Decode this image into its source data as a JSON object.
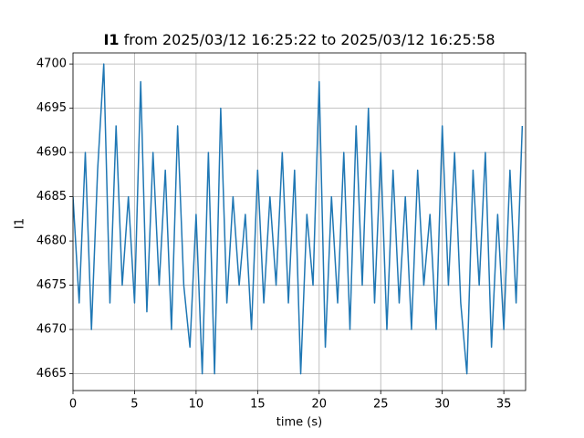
{
  "chart_data": {
    "type": "line",
    "title": {
      "name": "I1",
      "text": "from 2025/03/12 16:25:22 to 2025/03/12 16:25:58"
    },
    "xlabel": "time (s)",
    "ylabel": "I1",
    "x": [
      0,
      0.5,
      1,
      1.5,
      2,
      2.5,
      3,
      3.5,
      4,
      4.5,
      5,
      5.5,
      6,
      6.5,
      7,
      7.5,
      8,
      8.5,
      9,
      9.5,
      10,
      10.5,
      11,
      11.5,
      12,
      12.5,
      13,
      13.5,
      14,
      14.5,
      15,
      15.5,
      16,
      16.5,
      17,
      17.5,
      18,
      18.5,
      19,
      19.5,
      20,
      20.5,
      21,
      21.5,
      22,
      22.5,
      23,
      23.5,
      24,
      24.5,
      25,
      25.5,
      26,
      26.5,
      27,
      27.5,
      28,
      28.5,
      29,
      29.5,
      30,
      30.5,
      31,
      31.5,
      32,
      32.5,
      33,
      33.5,
      34,
      34.5,
      35,
      35.5,
      36,
      36.5
    ],
    "series": [
      {
        "name": "I1",
        "color": "#1f77b4",
        "values": [
          4685,
          4673,
          4690,
          4670,
          4688,
          4700,
          4673,
          4693,
          4675,
          4685,
          4673,
          4698,
          4672,
          4690,
          4675,
          4688,
          4670,
          4693,
          4675,
          4668,
          4683,
          4665,
          4690,
          4665,
          4695,
          4673,
          4685,
          4675,
          4683,
          4670,
          4688,
          4673,
          4685,
          4675,
          4690,
          4673,
          4688,
          4665,
          4683,
          4675,
          4698,
          4668,
          4685,
          4673,
          4690,
          4670,
          4693,
          4675,
          4695,
          4673,
          4690,
          4670,
          4688,
          4673,
          4685,
          4670,
          4688,
          4675,
          4683,
          4670,
          4693,
          4675,
          4690,
          4673,
          4665,
          4688,
          4675,
          4690,
          4668,
          4683,
          4670,
          4688,
          4673,
          4693
        ]
      }
    ],
    "xlim": [
      0,
      36.77
    ],
    "ylim": [
      4663.1,
      4701.25
    ],
    "xticks": [
      0,
      5,
      10,
      15,
      20,
      25,
      30,
      35
    ],
    "yticks": [
      4665,
      4670,
      4675,
      4680,
      4685,
      4690,
      4695,
      4700
    ],
    "grid": true
  }
}
